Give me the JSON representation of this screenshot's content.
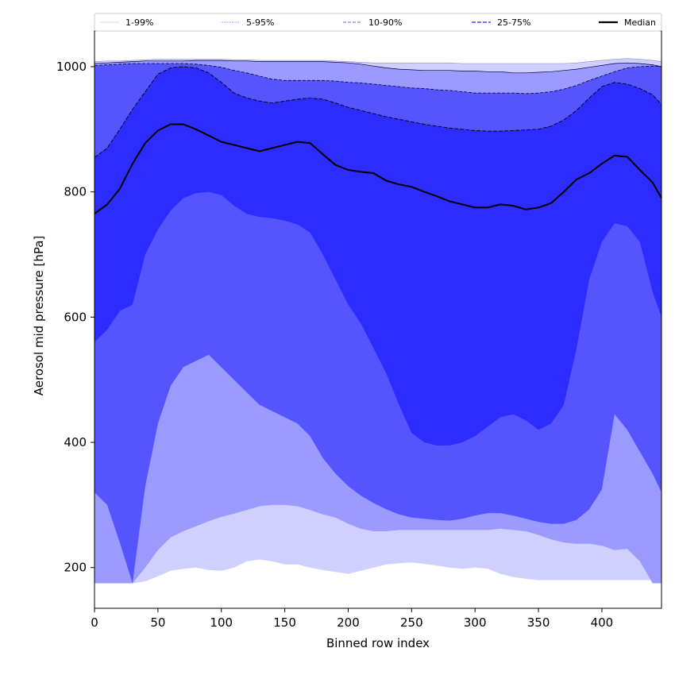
{
  "chart_data": {
    "type": "area",
    "title": "",
    "xlabel": "Binned row index",
    "ylabel": "Aerosol mid pressure [hPa]",
    "xlim": [
      0,
      447
    ],
    "ylim": [
      135,
      1057
    ],
    "xticks": [
      0,
      50,
      100,
      150,
      200,
      250,
      300,
      350,
      400
    ],
    "yticks": [
      200,
      400,
      600,
      800,
      1000
    ],
    "grid": false,
    "legend_placement": "top",
    "floor": 175,
    "colors": {
      "band_1_99": "#d0d0ff",
      "band_5_95": "#9a9aff",
      "band_10_90": "#5555ff",
      "band_25_75": "#2c2cff",
      "median": "#000000"
    },
    "legend": [
      {
        "label": "1-99%",
        "style": "p1"
      },
      {
        "label": "5-95%",
        "style": "p5"
      },
      {
        "label": "10-90%",
        "style": "p10"
      },
      {
        "label": "25-75%",
        "style": "p25"
      },
      {
        "label": "Median",
        "style": "median"
      }
    ],
    "x": [
      0,
      10,
      20,
      30,
      40,
      50,
      60,
      70,
      80,
      90,
      100,
      110,
      120,
      130,
      140,
      150,
      160,
      170,
      180,
      190,
      200,
      210,
      220,
      230,
      240,
      250,
      260,
      270,
      280,
      290,
      300,
      310,
      320,
      330,
      340,
      350,
      360,
      370,
      380,
      390,
      400,
      410,
      420,
      430,
      440,
      447
    ],
    "series": [
      {
        "name": "1-99%",
        "role": "upper_1_99",
        "values": [
          1008,
          1009,
          1009,
          1010,
          1011,
          1012,
          1012,
          1012,
          1012,
          1012,
          1012,
          1011,
          1011,
          1010,
          1010,
          1010,
          1010,
          1010,
          1010,
          1009,
          1008,
          1007,
          1006,
          1006,
          1006,
          1006,
          1006,
          1006,
          1006,
          1005,
          1005,
          1005,
          1005,
          1005,
          1005,
          1005,
          1005,
          1005,
          1006,
          1008,
          1010,
          1012,
          1013,
          1012,
          1010,
          1008
        ]
      },
      {
        "name": "1-99%",
        "role": "lower_1_99",
        "values": [
          175,
          175,
          175,
          175,
          178,
          186,
          195,
          198,
          200,
          196,
          195,
          200,
          210,
          213,
          210,
          205,
          205,
          200,
          196,
          193,
          190,
          195,
          200,
          205,
          207,
          208,
          206,
          203,
          200,
          198,
          200,
          198,
          190,
          185,
          182,
          180,
          180,
          180,
          180,
          180,
          180,
          180,
          180,
          180,
          180,
          180
        ]
      },
      {
        "name": "5-95%",
        "role": "upper_5_95",
        "values": [
          1005,
          1006,
          1007,
          1008,
          1009,
          1009,
          1009,
          1009,
          1010,
          1010,
          1010,
          1009,
          1009,
          1008,
          1008,
          1008,
          1008,
          1008,
          1008,
          1007,
          1006,
          1004,
          1001,
          998,
          996,
          995,
          994,
          994,
          994,
          993,
          993,
          992,
          992,
          990,
          990,
          991,
          992,
          994,
          996,
          999,
          1002,
          1005,
          1006,
          1005,
          1003,
          1000
        ]
      },
      {
        "name": "5-95%",
        "role": "lower_5_95",
        "values": [
          175,
          175,
          175,
          175,
          200,
          228,
          248,
          258,
          266,
          274,
          281,
          286,
          292,
          298,
          300,
          300,
          298,
          292,
          285,
          280,
          270,
          262,
          258,
          258,
          260,
          260,
          260,
          260,
          260,
          260,
          260,
          260,
          262,
          260,
          258,
          252,
          245,
          240,
          238,
          238,
          235,
          228,
          230,
          210,
          175,
          175
        ]
      },
      {
        "name": "10-90%",
        "role": "upper_10_90",
        "values": [
          1002,
          1003,
          1004,
          1005,
          1005,
          1005,
          1005,
          1005,
          1004,
          1002,
          999,
          994,
          990,
          985,
          980,
          978,
          978,
          978,
          978,
          977,
          975,
          974,
          972,
          970,
          968,
          966,
          965,
          963,
          962,
          960,
          958,
          958,
          958,
          958,
          957,
          958,
          960,
          964,
          970,
          978,
          985,
          992,
          998,
          1000,
          1001,
          1000
        ]
      },
      {
        "name": "10-90%",
        "role": "lower_10_90",
        "values": [
          320,
          300,
          240,
          175,
          330,
          430,
          490,
          520,
          530,
          540,
          520,
          500,
          480,
          460,
          450,
          440,
          430,
          410,
          375,
          350,
          330,
          315,
          303,
          293,
          285,
          280,
          278,
          276,
          275,
          278,
          283,
          287,
          287,
          283,
          278,
          273,
          270,
          270,
          276,
          293,
          325,
          445,
          420,
          385,
          350,
          320
        ]
      },
      {
        "name": "25-75%",
        "role": "upper_25_75",
        "values": [
          855,
          870,
          900,
          932,
          960,
          988,
          998,
          1000,
          998,
          990,
          975,
          958,
          950,
          945,
          942,
          945,
          948,
          950,
          948,
          942,
          935,
          930,
          925,
          920,
          916,
          912,
          908,
          905,
          902,
          900,
          898,
          897,
          897,
          898,
          899,
          900,
          905,
          915,
          930,
          950,
          968,
          975,
          972,
          965,
          955,
          940
        ]
      },
      {
        "name": "25-75%",
        "role": "lower_25_75",
        "values": [
          560,
          580,
          610,
          620,
          700,
          740,
          770,
          790,
          798,
          800,
          795,
          778,
          765,
          760,
          758,
          754,
          748,
          735,
          700,
          660,
          620,
          590,
          550,
          510,
          460,
          415,
          400,
          395,
          395,
          400,
          410,
          425,
          440,
          445,
          435,
          420,
          430,
          460,
          550,
          660,
          720,
          750,
          745,
          720,
          640,
          600
        ]
      },
      {
        "name": "Median",
        "role": "median",
        "values": [
          765,
          780,
          805,
          845,
          878,
          898,
          908,
          908,
          900,
          890,
          880,
          875,
          870,
          865,
          870,
          875,
          880,
          878,
          860,
          843,
          835,
          832,
          830,
          818,
          812,
          808,
          800,
          793,
          785,
          780,
          775,
          775,
          780,
          778,
          772,
          775,
          782,
          800,
          820,
          830,
          845,
          858,
          856,
          835,
          815,
          790
        ]
      }
    ]
  }
}
